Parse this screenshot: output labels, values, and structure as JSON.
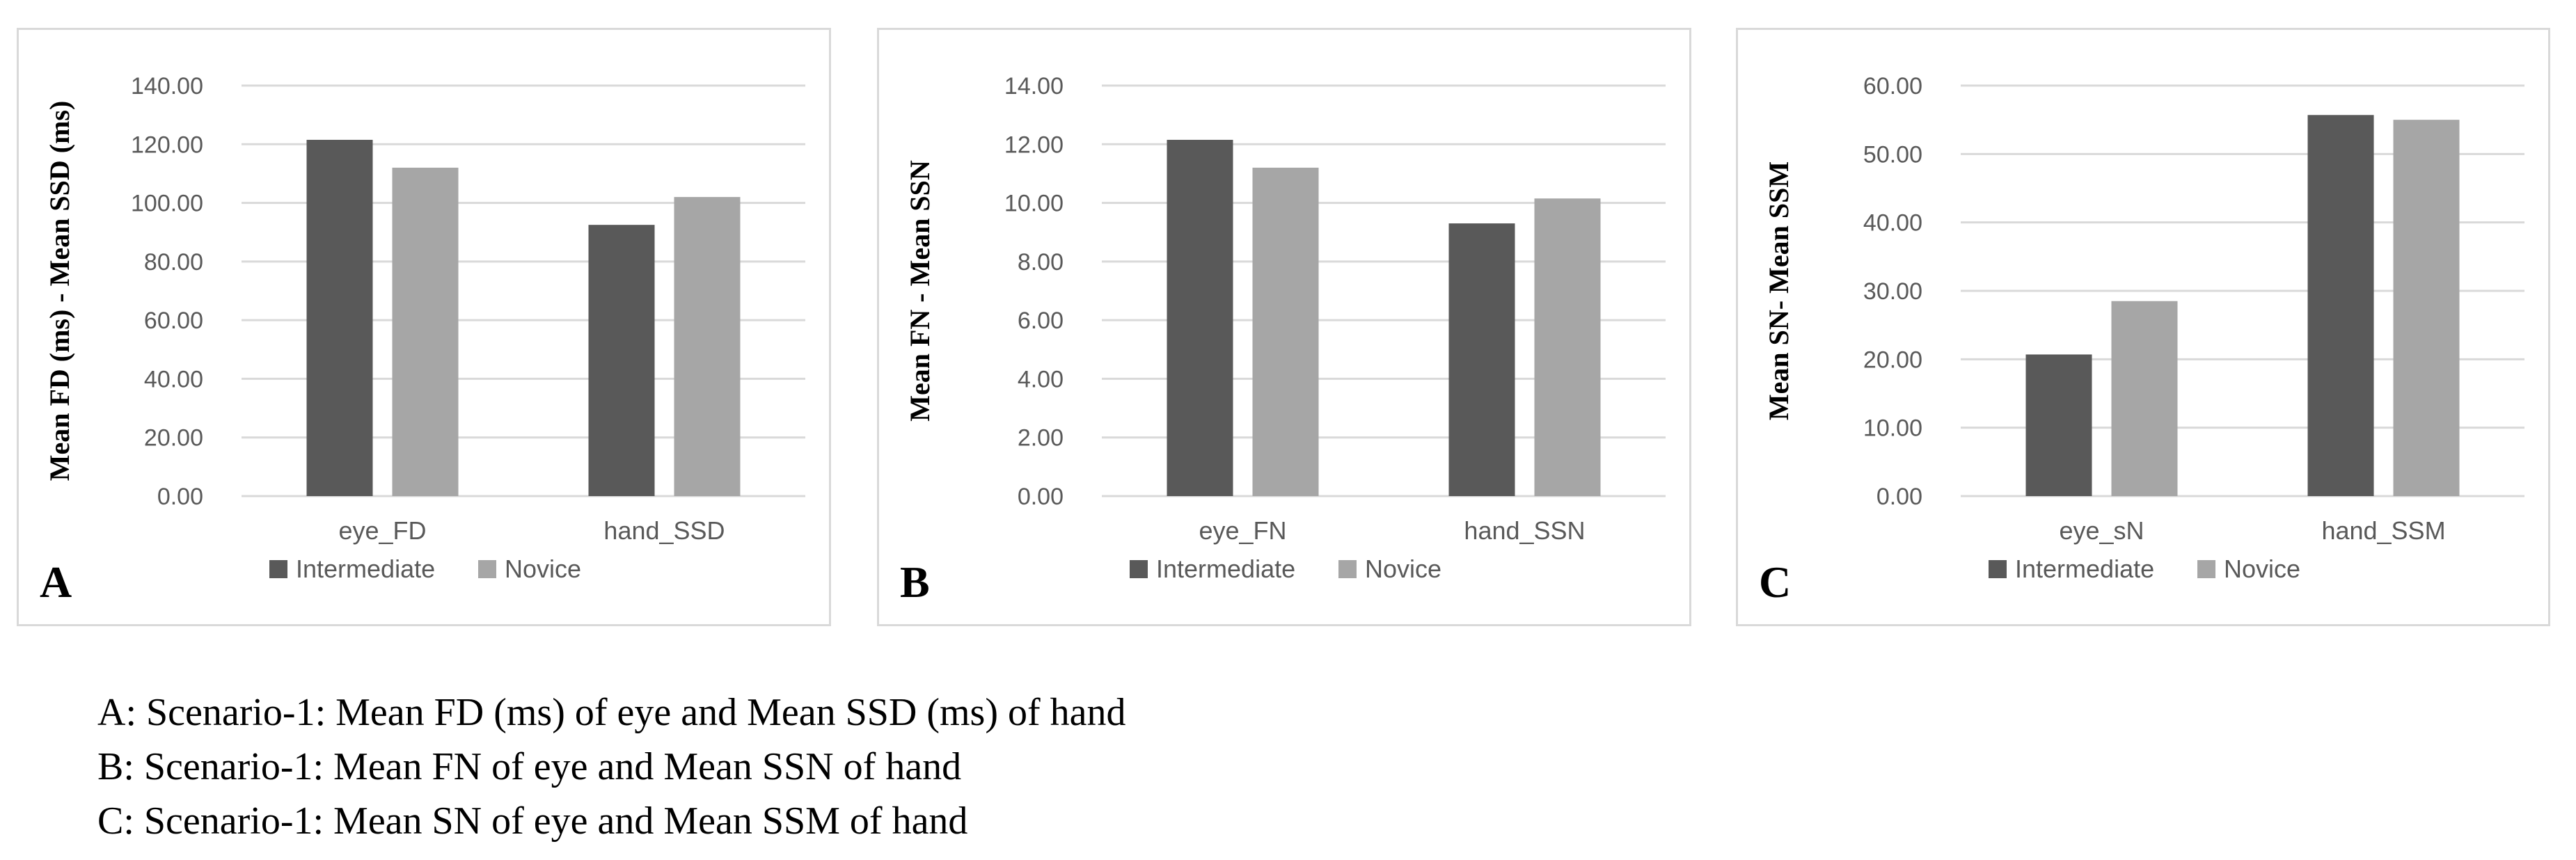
{
  "colors": {
    "intermediate": "#595959",
    "novice": "#a6a6a6",
    "grid": "#d9d9d9"
  },
  "chart_data": [
    {
      "type": "bar",
      "panel": "A",
      "categories": [
        "eye_FD",
        "hand_SSD"
      ],
      "series": [
        {
          "name": "Intermediate",
          "values": [
            121.5,
            92.5
          ]
        },
        {
          "name": "Novice",
          "values": [
            112.0,
            102.0
          ]
        }
      ],
      "ylabel": "Mean FD (ms) - Mean SSD (ms)",
      "ylim": [
        0,
        140
      ],
      "yticks": [
        "0.00",
        "20.00",
        "40.00",
        "60.00",
        "80.00",
        "100.00",
        "120.00",
        "140.00"
      ],
      "grid": true,
      "legend": "bottom"
    },
    {
      "type": "bar",
      "panel": "B",
      "categories": [
        "eye_FN",
        "hand_SSN"
      ],
      "series": [
        {
          "name": "Intermediate",
          "values": [
            12.15,
            9.3
          ]
        },
        {
          "name": "Novice",
          "values": [
            11.2,
            10.15
          ]
        }
      ],
      "ylabel": "Mean FN - Mean SSN",
      "ylim": [
        0,
        14
      ],
      "yticks": [
        "0.00",
        "2.00",
        "4.00",
        "6.00",
        "8.00",
        "10.00",
        "12.00",
        "14.00"
      ],
      "grid": true,
      "legend": "bottom"
    },
    {
      "type": "bar",
      "panel": "C",
      "categories": [
        "eye_sN",
        "hand_SSM"
      ],
      "series": [
        {
          "name": "Intermediate",
          "values": [
            20.7,
            55.7
          ]
        },
        {
          "name": "Novice",
          "values": [
            28.5,
            55.0
          ]
        }
      ],
      "ylabel": "Mean SN- Mean SSM",
      "ylim": [
        0,
        60
      ],
      "yticks": [
        "0.00",
        "10.00",
        "20.00",
        "30.00",
        "40.00",
        "50.00",
        "60.00"
      ],
      "grid": true,
      "legend": "bottom"
    }
  ],
  "captions": [
    "A: Scenario-1: Mean FD (ms) of eye and Mean SSD (ms) of hand",
    "B: Scenario-1: Mean FN of eye and Mean SSN of hand",
    "C: Scenario-1: Mean SN of eye and Mean SSM of hand"
  ]
}
